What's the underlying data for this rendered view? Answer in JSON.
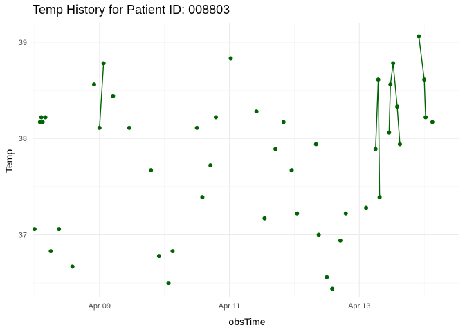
{
  "chart_data": {
    "type": "scatter",
    "title": "Temp History for Patient ID: 008803",
    "xlabel": "obsTime",
    "ylabel": "Temp",
    "x_ticks": [
      {
        "value": "2021-04-09",
        "label": "Apr 09"
      },
      {
        "value": "2021-04-11",
        "label": "Apr 11"
      },
      {
        "value": "2021-04-13",
        "label": "Apr 13"
      }
    ],
    "y_ticks": [
      37,
      38,
      39
    ],
    "xlim": [
      "2021-04-07T23:15",
      "2021-04-14T13:00"
    ],
    "ylim": [
      36.35,
      39.2
    ],
    "grid": true,
    "point_color": "#006400",
    "points": [
      {
        "x": "2021-04-08T00:00",
        "y": 37.06
      },
      {
        "x": "2021-04-08T02:00",
        "y": 38.17
      },
      {
        "x": "2021-04-08T02:30",
        "y": 38.22
      },
      {
        "x": "2021-04-08T03:00",
        "y": 38.17
      },
      {
        "x": "2021-04-08T04:00",
        "y": 38.22
      },
      {
        "x": "2021-04-08T06:00",
        "y": 36.83
      },
      {
        "x": "2021-04-08T09:00",
        "y": 37.06
      },
      {
        "x": "2021-04-08T14:00",
        "y": 36.67
      },
      {
        "x": "2021-04-08T22:00",
        "y": 38.56
      },
      {
        "x": "2021-04-09T00:00",
        "y": 38.11
      },
      {
        "x": "2021-04-09T01:30",
        "y": 38.78
      },
      {
        "x": "2021-04-09T05:00",
        "y": 38.44
      },
      {
        "x": "2021-04-09T11:00",
        "y": 38.11
      },
      {
        "x": "2021-04-09T19:00",
        "y": 37.67
      },
      {
        "x": "2021-04-09T22:00",
        "y": 36.78
      },
      {
        "x": "2021-04-10T01:30",
        "y": 36.5
      },
      {
        "x": "2021-04-10T03:00",
        "y": 36.83
      },
      {
        "x": "2021-04-10T12:00",
        "y": 38.11
      },
      {
        "x": "2021-04-10T14:00",
        "y": 37.39
      },
      {
        "x": "2021-04-10T17:00",
        "y": 37.72
      },
      {
        "x": "2021-04-10T19:00",
        "y": 38.22
      },
      {
        "x": "2021-04-11T00:30",
        "y": 38.83
      },
      {
        "x": "2021-04-11T10:00",
        "y": 38.28
      },
      {
        "x": "2021-04-11T13:00",
        "y": 37.17
      },
      {
        "x": "2021-04-11T17:00",
        "y": 37.89
      },
      {
        "x": "2021-04-11T20:00",
        "y": 38.17
      },
      {
        "x": "2021-04-11T23:00",
        "y": 37.67
      },
      {
        "x": "2021-04-12T01:00",
        "y": 37.22
      },
      {
        "x": "2021-04-12T08:00",
        "y": 37.94
      },
      {
        "x": "2021-04-12T09:00",
        "y": 37.0
      },
      {
        "x": "2021-04-12T12:00",
        "y": 36.56
      },
      {
        "x": "2021-04-12T14:00",
        "y": 36.44
      },
      {
        "x": "2021-04-12T17:00",
        "y": 36.94
      },
      {
        "x": "2021-04-12T19:00",
        "y": 37.22
      },
      {
        "x": "2021-04-13T02:30",
        "y": 37.28
      }
    ],
    "line_segments": [
      [
        {
          "x": "2021-04-09T00:00",
          "y": 38.11
        },
        {
          "x": "2021-04-09T01:30",
          "y": 38.78
        }
      ],
      [
        {
          "x": "2021-04-13T06:00",
          "y": 37.89
        },
        {
          "x": "2021-04-13T07:00",
          "y": 38.61
        },
        {
          "x": "2021-04-13T07:30",
          "y": 37.39
        }
      ],
      [
        {
          "x": "2021-04-13T11:00",
          "y": 38.06
        },
        {
          "x": "2021-04-13T11:30",
          "y": 38.56
        },
        {
          "x": "2021-04-13T12:30",
          "y": 38.78
        },
        {
          "x": "2021-04-13T14:00",
          "y": 38.33
        },
        {
          "x": "2021-04-13T15:00",
          "y": 37.94
        }
      ],
      [
        {
          "x": "2021-04-13T22:00",
          "y": 39.06
        },
        {
          "x": "2021-04-14T00:00",
          "y": 38.61
        },
        {
          "x": "2021-04-14T00:30",
          "y": 38.22
        }
      ]
    ],
    "extra_points": [
      {
        "x": "2021-04-14T03:00",
        "y": 38.17
      }
    ]
  }
}
